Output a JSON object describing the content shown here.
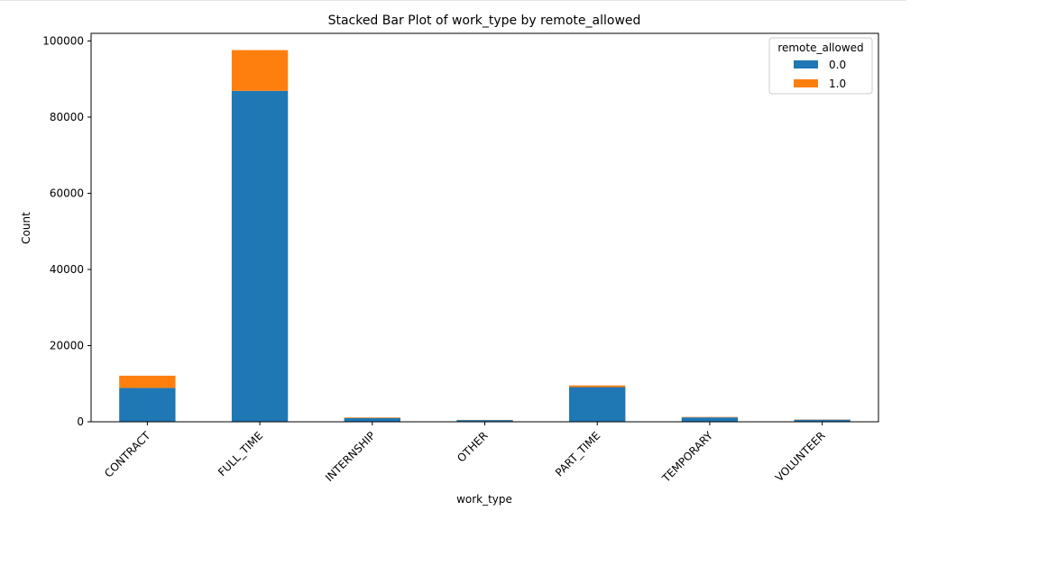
{
  "chart_data": {
    "type": "bar",
    "stacked": true,
    "title": "Stacked Bar Plot of work_type by remote_allowed",
    "xlabel": "work_type",
    "ylabel": "Count",
    "categories": [
      "CONTRACT",
      "FULL_TIME",
      "INTERNSHIP",
      "OTHER",
      "PART_TIME",
      "TEMPORARY",
      "VOLUNTEER"
    ],
    "series": [
      {
        "name": "0.0",
        "color": "#1f77b4",
        "values": [
          8900,
          86900,
          1000,
          450,
          9100,
          1150,
          550
        ]
      },
      {
        "name": "1.0",
        "color": "#ff7f0e",
        "values": [
          3200,
          10700,
          150,
          50,
          450,
          120,
          60
        ]
      }
    ],
    "ylim": [
      0,
      102000
    ],
    "yticks": [
      0,
      20000,
      40000,
      60000,
      80000,
      100000
    ],
    "ytick_labels": [
      "0",
      "20000",
      "40000",
      "60000",
      "80000",
      "100000"
    ],
    "grid": false,
    "legend": {
      "title": "remote_allowed",
      "placement": "top-right"
    }
  }
}
